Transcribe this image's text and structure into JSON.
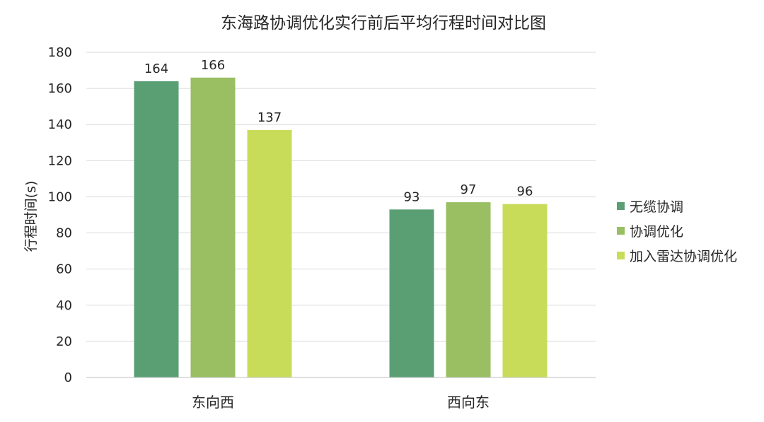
{
  "chart_data": {
    "type": "bar",
    "title": "东海路协调优化实行前后平均行程时间对比图",
    "xlabel": "",
    "ylabel": "行程时间(s)",
    "categories": [
      "东向西",
      "西向东"
    ],
    "series": [
      {
        "name": "无缆协调",
        "values": [
          164,
          93
        ],
        "color": "#5a9f74"
      },
      {
        "name": "协调优化",
        "values": [
          166,
          97
        ],
        "color": "#99bf62"
      },
      {
        "name": "加入雷达协调优化",
        "values": [
          137,
          96
        ],
        "color": "#c9dc5a"
      }
    ],
    "ylim": [
      0,
      180
    ],
    "yticks": [
      0,
      20,
      40,
      60,
      80,
      100,
      120,
      140,
      160,
      180
    ],
    "grid": true,
    "legend_position": "right",
    "data_labels": true
  }
}
